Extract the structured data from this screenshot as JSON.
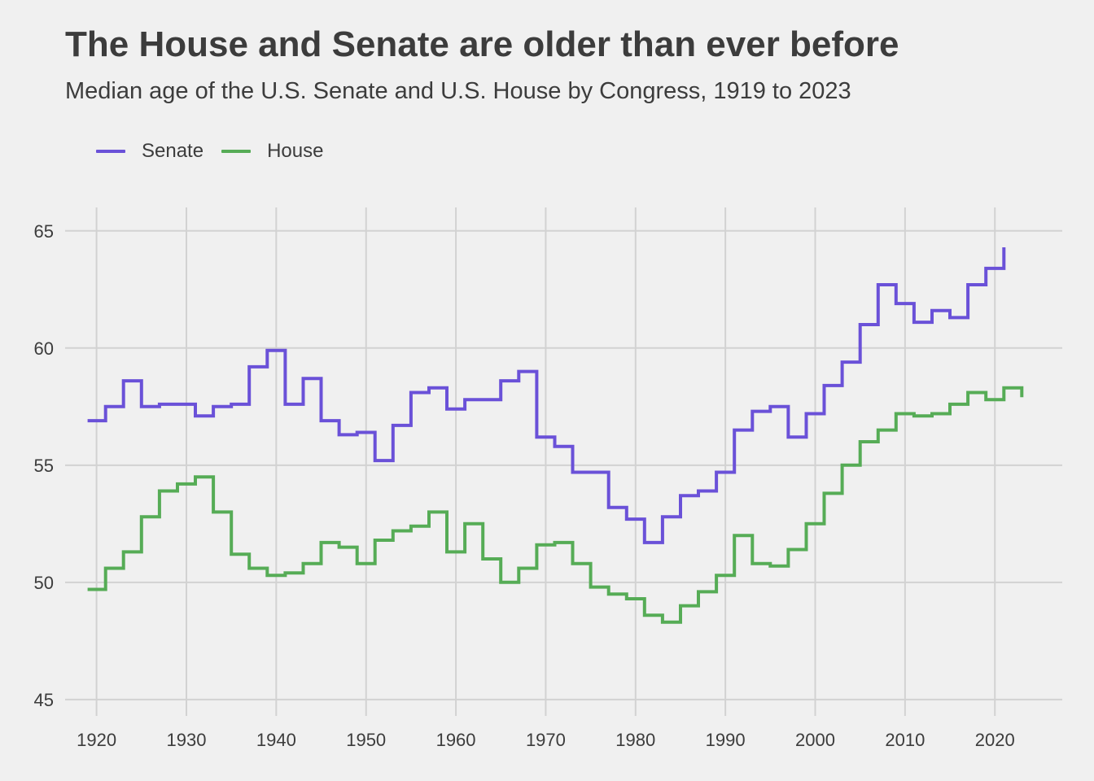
{
  "title": "The House and Senate are older than ever before",
  "subtitle": "Median age of the U.S. Senate and U.S. House by Congress, 1919 to 2023",
  "legend": [
    {
      "name": "Senate",
      "color": "#6a51d8"
    },
    {
      "name": "House",
      "color": "#56ac56"
    }
  ],
  "chart_data": {
    "type": "line",
    "step": true,
    "title": "The House and Senate are older than ever before",
    "subtitle": "Median age of the U.S. Senate and U.S. House by Congress, 1919 to 2023",
    "xlabel": "",
    "ylabel": "",
    "xlim": [
      1916.5,
      2027.5
    ],
    "ylim": [
      44.3,
      66
    ],
    "x_ticks": [
      1920,
      1930,
      1940,
      1950,
      1960,
      1970,
      1980,
      1990,
      2000,
      2010,
      2020
    ],
    "y_ticks": [
      45,
      50,
      55,
      60,
      65
    ],
    "grid": true,
    "legend_position": "top-left",
    "series": [
      {
        "name": "Senate",
        "color": "#6a51d8",
        "x": [
          1919,
          1921,
          1923,
          1925,
          1927,
          1929,
          1931,
          1933,
          1935,
          1937,
          1939,
          1941,
          1943,
          1945,
          1947,
          1949,
          1951,
          1953,
          1955,
          1957,
          1959,
          1961,
          1963,
          1965,
          1967,
          1969,
          1971,
          1973,
          1975,
          1977,
          1979,
          1981,
          1983,
          1985,
          1987,
          1989,
          1991,
          1993,
          1995,
          1997,
          1999,
          2001,
          2003,
          2005,
          2007,
          2009,
          2011,
          2013,
          2015,
          2017,
          2019,
          2021
        ],
        "values": [
          56.9,
          57.5,
          58.6,
          57.5,
          57.6,
          57.6,
          57.1,
          57.5,
          57.6,
          59.2,
          59.9,
          57.6,
          58.7,
          56.9,
          56.3,
          56.4,
          55.2,
          56.7,
          58.1,
          58.3,
          57.4,
          57.8,
          57.8,
          58.6,
          59.0,
          56.2,
          55.8,
          54.7,
          54.7,
          53.2,
          52.7,
          51.7,
          52.8,
          53.7,
          53.9,
          54.7,
          56.5,
          57.3,
          57.5,
          56.2,
          57.2,
          58.4,
          59.4,
          61.0,
          62.7,
          61.9,
          61.1,
          61.6,
          61.3,
          62.7,
          63.4,
          64.3
        ]
      },
      {
        "name": "House",
        "color": "#56ac56",
        "x": [
          1919,
          1921,
          1923,
          1925,
          1927,
          1929,
          1931,
          1933,
          1935,
          1937,
          1939,
          1941,
          1943,
          1945,
          1947,
          1949,
          1951,
          1953,
          1955,
          1957,
          1959,
          1961,
          1963,
          1965,
          1967,
          1969,
          1971,
          1973,
          1975,
          1977,
          1979,
          1981,
          1983,
          1985,
          1987,
          1989,
          1991,
          1993,
          1995,
          1997,
          1999,
          2001,
          2003,
          2005,
          2007,
          2009,
          2011,
          2013,
          2015,
          2017,
          2019,
          2021,
          2023
        ],
        "values": [
          49.7,
          50.6,
          51.3,
          52.8,
          53.9,
          54.2,
          54.5,
          53.0,
          51.2,
          50.6,
          50.3,
          50.4,
          50.8,
          51.7,
          51.5,
          50.8,
          51.8,
          52.2,
          52.4,
          53.0,
          51.3,
          52.5,
          51.0,
          50.0,
          50.6,
          51.6,
          51.7,
          50.8,
          49.8,
          49.5,
          49.3,
          48.6,
          48.3,
          49.0,
          49.6,
          50.3,
          52.0,
          50.8,
          50.7,
          51.4,
          52.5,
          53.8,
          55.0,
          56.0,
          56.5,
          57.2,
          57.1,
          57.2,
          57.6,
          58.1,
          57.8,
          58.3,
          57.9
        ]
      }
    ]
  }
}
